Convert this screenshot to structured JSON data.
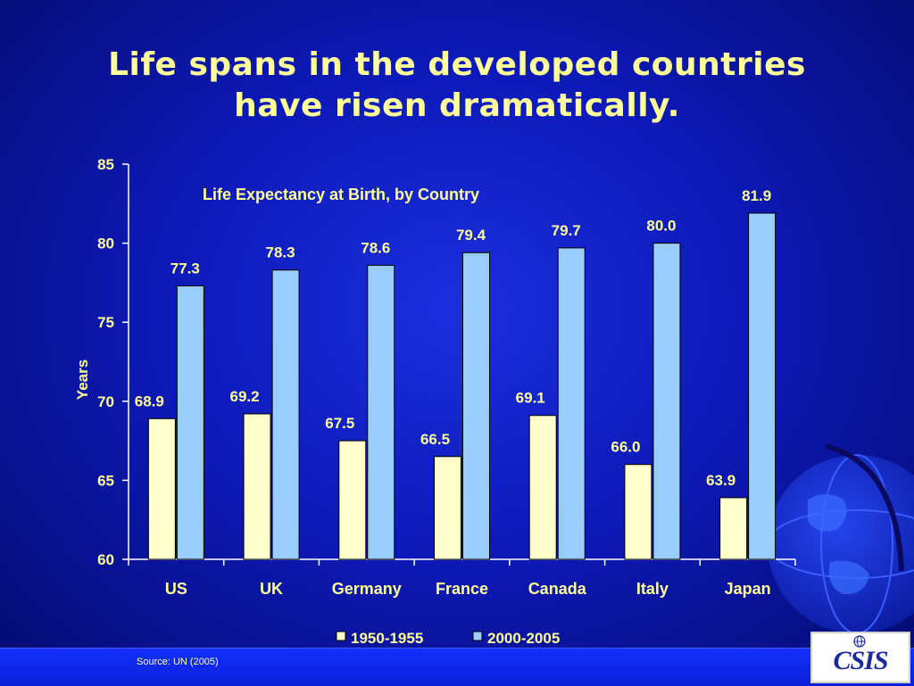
{
  "slide": {
    "title_line1": "Life spans in the developed countries",
    "title_line2": "have risen dramatically.",
    "source": "Source: UN (2005)",
    "logo_text": "CSIS"
  },
  "colors": {
    "series_1950": "#ffffcc",
    "series_2000": "#99ccff",
    "text_yellow": "#ffff99",
    "axis": "#ffffff"
  },
  "chart_data": {
    "type": "bar",
    "title": "Life Expectancy at Birth, by Country",
    "xlabel": "",
    "ylabel": "Years",
    "ylim": [
      60,
      85
    ],
    "yticks": [
      60,
      65,
      70,
      75,
      80,
      85
    ],
    "grid": false,
    "legend": "bottom",
    "categories": [
      "US",
      "UK",
      "Germany",
      "France",
      "Canada",
      "Italy",
      "Japan"
    ],
    "series": [
      {
        "name": "1950-1955",
        "values": [
          68.9,
          69.2,
          67.5,
          66.5,
          69.1,
          66.0,
          63.9
        ],
        "labels": [
          "68.9",
          "69.2",
          "67.5",
          "66.5",
          "69.1",
          "66.0",
          "63.9"
        ]
      },
      {
        "name": "2000-2005",
        "values": [
          77.3,
          78.3,
          78.6,
          79.4,
          79.7,
          80.0,
          81.9
        ],
        "labels": [
          "77.3",
          "78.3",
          "78.6",
          "79.4",
          "79.7",
          "80.0",
          "81.9"
        ]
      }
    ]
  }
}
